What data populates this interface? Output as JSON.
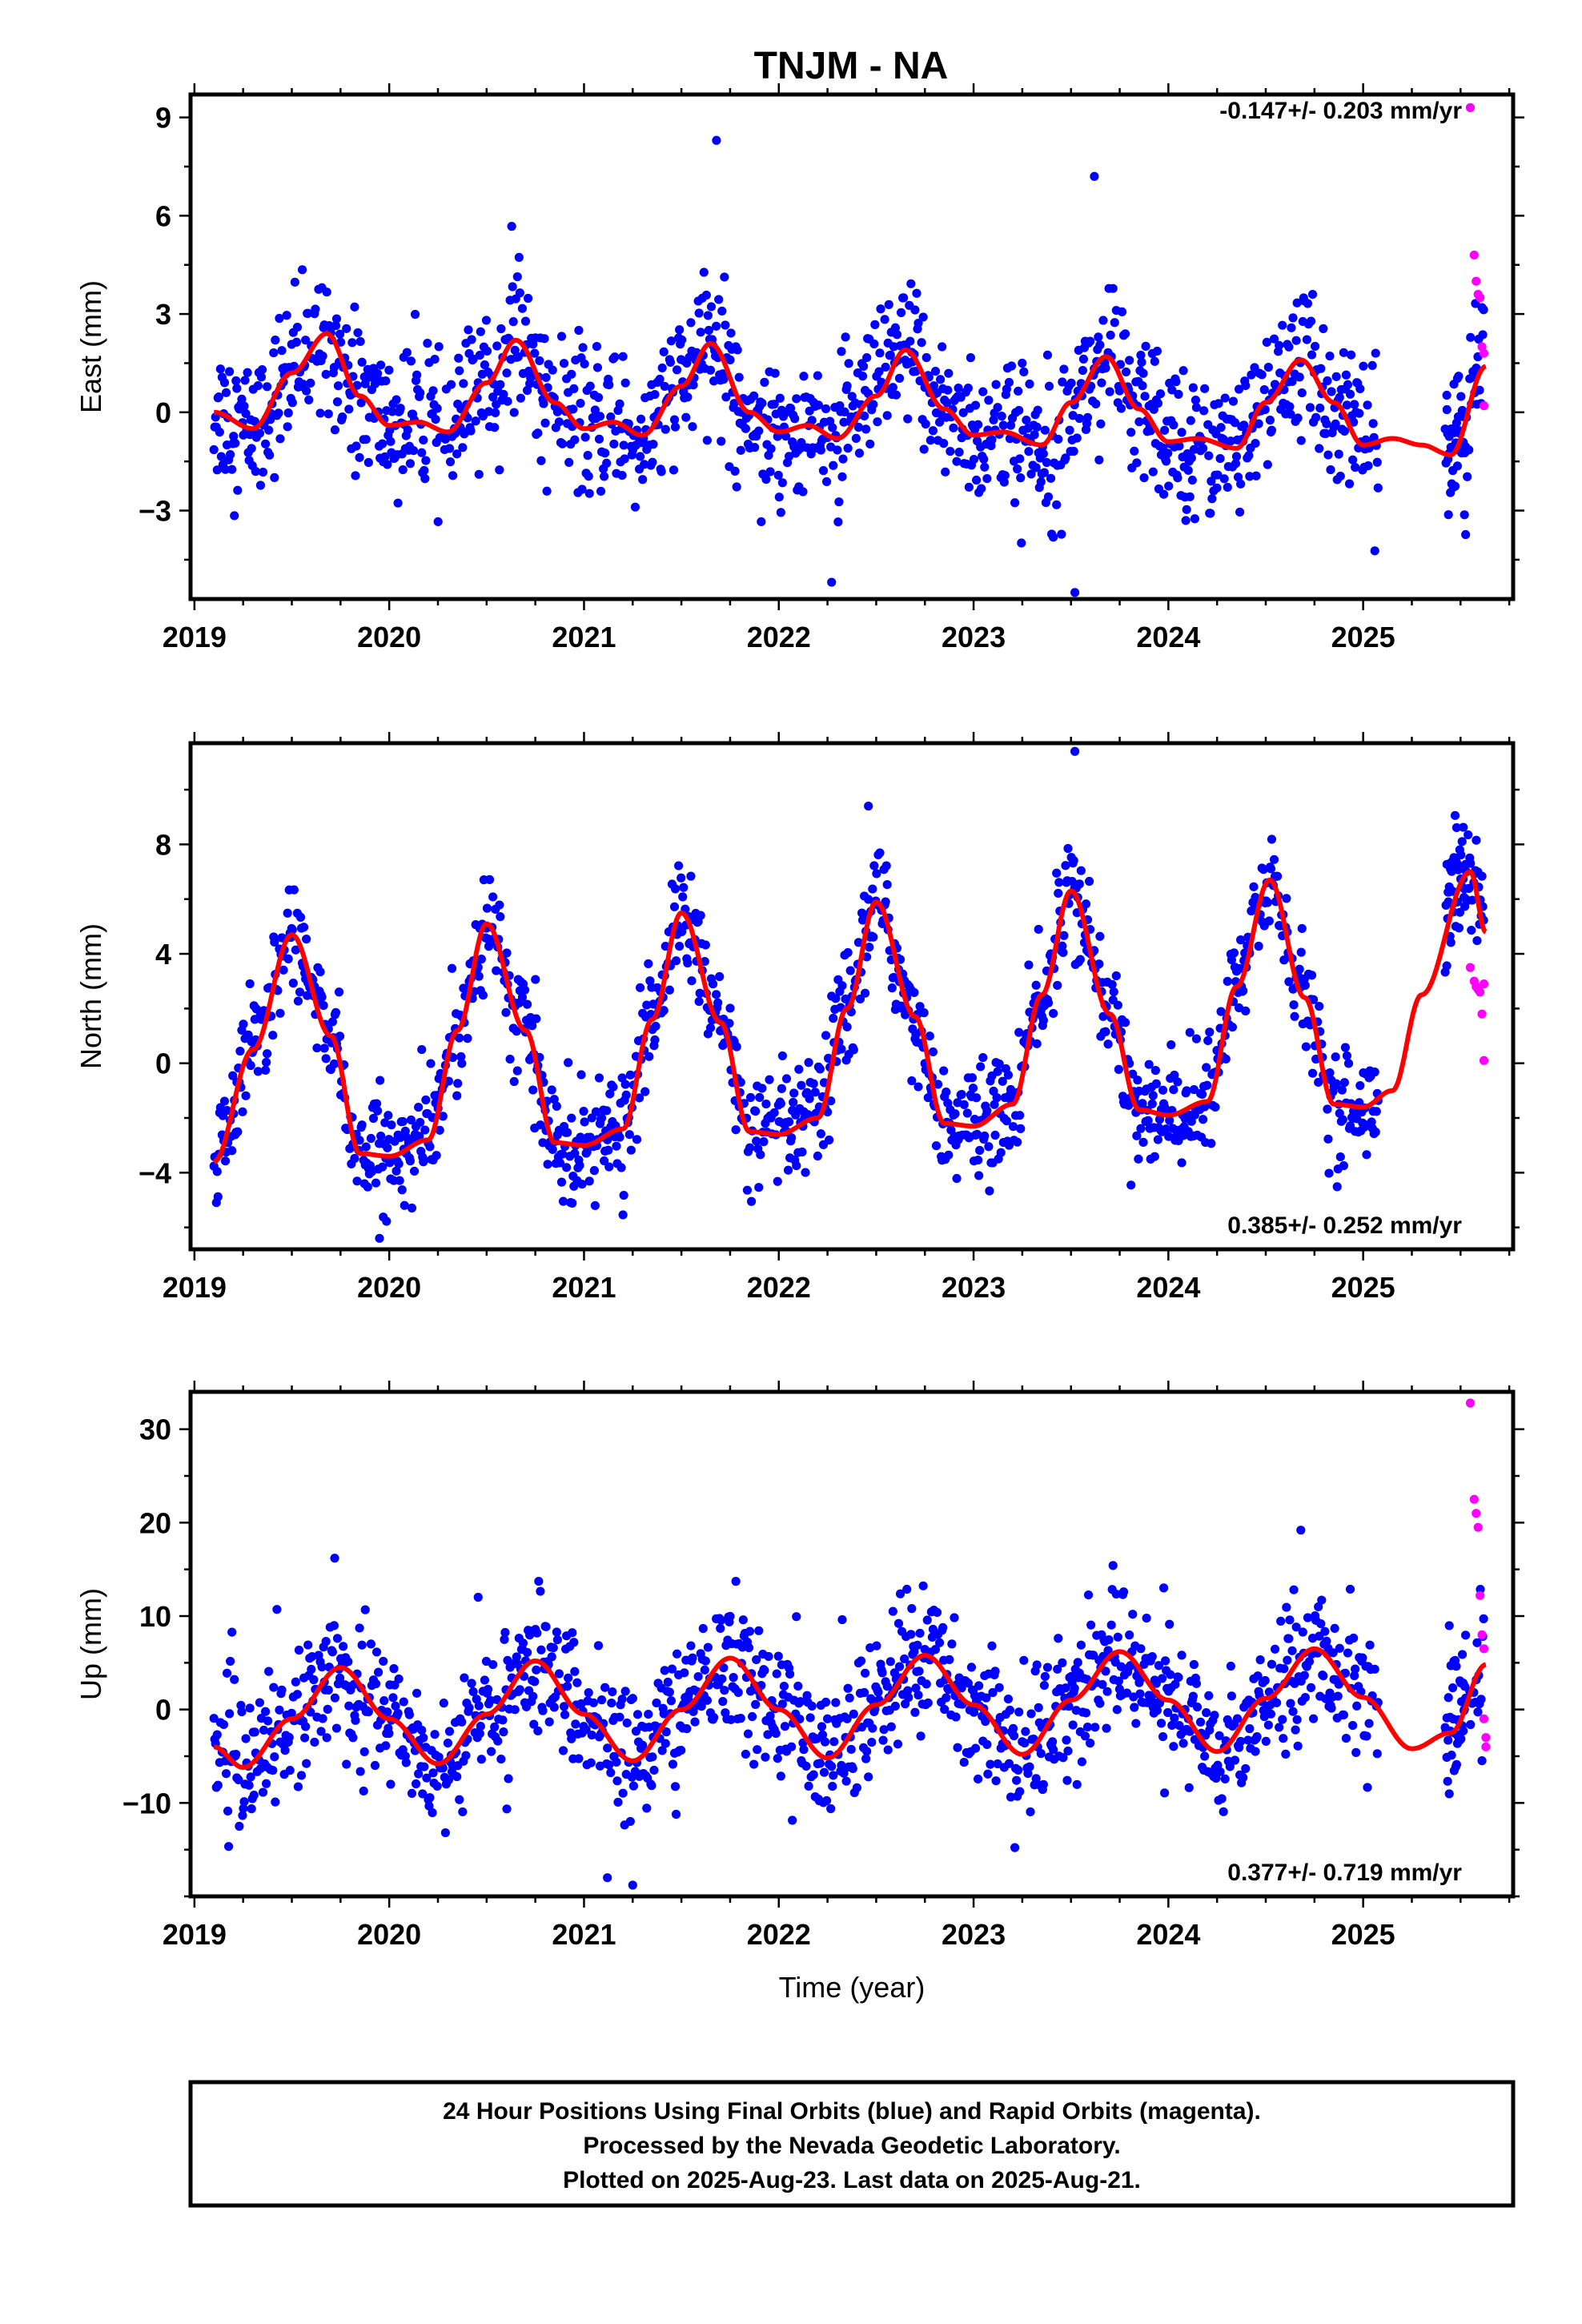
{
  "title": "TNJM - NA",
  "footer": {
    "line1": "24 Hour Positions Using Final Orbits (blue) and Rapid Orbits (magenta).",
    "line2": "Processed by the Nevada Geodetic Laboratory.",
    "line3": "Plotted on 2025-Aug-23. Last data on 2025-Aug-21."
  },
  "colors": {
    "final": "#0000ff",
    "rapid": "#ff00ff",
    "fit": "#ff0000",
    "frame": "#000000"
  },
  "chart_data": [
    {
      "type": "scatter",
      "ylabel": "East (mm)",
      "xlabel": "",
      "rate_label": "-0.147+/- 0.203 mm/yr",
      "xlim": [
        2018.98,
        2025.77
      ],
      "ylim": [
        -5.7,
        9.7
      ],
      "yticks": [
        -3,
        0,
        3,
        6,
        9
      ],
      "xticks": [
        2019,
        2020,
        2021,
        2022,
        2023,
        2024,
        2025
      ],
      "xtick_labels": [
        "2019",
        "2020",
        "2021",
        "2022",
        "2023",
        "2024",
        "2025"
      ],
      "fit": {
        "x": [
          2019.1,
          2019.3,
          2019.5,
          2019.68,
          2019.85,
          2020.0,
          2020.15,
          2020.3,
          2020.5,
          2020.65,
          2020.85,
          2021.0,
          2021.15,
          2021.3,
          2021.5,
          2021.65,
          2021.85,
          2022.0,
          2022.15,
          2022.3,
          2022.5,
          2022.65,
          2022.85,
          2023.0,
          2023.15,
          2023.35,
          2023.5,
          2023.68,
          2023.85,
          2024.0,
          2024.15,
          2024.35,
          2024.5,
          2024.68,
          2024.85,
          2025.0,
          2025.15,
          2025.3,
          2025.45,
          2025.63
        ],
        "y": [
          0.0,
          -0.5,
          1.2,
          2.4,
          0.5,
          -0.4,
          -0.3,
          -0.6,
          0.9,
          2.2,
          0.3,
          -0.5,
          -0.3,
          -0.7,
          0.8,
          2.1,
          0.0,
          -0.6,
          -0.4,
          -0.8,
          0.5,
          1.9,
          0.1,
          -0.7,
          -0.6,
          -1.0,
          0.3,
          1.7,
          0.1,
          -0.9,
          -0.8,
          -1.1,
          0.3,
          1.6,
          0.3,
          -1.0,
          -0.8,
          -1.0,
          -1.3,
          1.4
        ]
      },
      "final": {
        "amp": 1.5,
        "phase": 0.58,
        "offset": 0.3,
        "trend": -0.147,
        "noise": 1.1,
        "outliers": [
          [
            2021.68,
            8.3
          ],
          [
            2023.62,
            7.2
          ],
          [
            2023.52,
            -5.5
          ]
        ]
      },
      "rapid": {
        "x": [
          2025.55,
          2025.57,
          2025.58,
          2025.59,
          2025.6,
          2025.61,
          2025.62,
          2025.62
        ],
        "y": [
          9.3,
          4.8,
          4.0,
          3.6,
          3.5,
          2.0,
          1.8,
          0.2
        ]
      }
    },
    {
      "type": "scatter",
      "ylabel": "North (mm)",
      "xlabel": "",
      "rate_label": "0.385+/- 0.252 mm/yr",
      "xlim": [
        2018.98,
        2025.77
      ],
      "ylim": [
        -6.8,
        11.7
      ],
      "yticks": [
        -4,
        0,
        4,
        8
      ],
      "xticks": [
        2019,
        2020,
        2021,
        2022,
        2023,
        2024,
        2025
      ],
      "xtick_labels": [
        "2019",
        "2020",
        "2021",
        "2022",
        "2023",
        "2024",
        "2025"
      ],
      "fit": {
        "x": [
          2019.1,
          2019.3,
          2019.5,
          2019.7,
          2019.85,
          2020.0,
          2020.2,
          2020.35,
          2020.5,
          2020.7,
          2020.85,
          2021.0,
          2021.2,
          2021.35,
          2021.5,
          2021.7,
          2021.85,
          2022.0,
          2022.2,
          2022.35,
          2022.5,
          2022.7,
          2022.85,
          2023.0,
          2023.2,
          2023.35,
          2023.5,
          2023.7,
          2023.85,
          2024.0,
          2024.2,
          2024.35,
          2024.52,
          2024.7,
          2024.85,
          2025.0,
          2025.15,
          2025.3,
          2025.55,
          2025.63
        ],
        "y": [
          -3.6,
          0.5,
          4.7,
          1.0,
          -3.3,
          -3.4,
          -2.8,
          1.2,
          5.1,
          1.2,
          -2.9,
          -3.0,
          -2.4,
          1.6,
          5.5,
          1.5,
          -2.5,
          -2.6,
          -2.0,
          2.0,
          5.9,
          1.7,
          -2.2,
          -2.3,
          -1.5,
          2.5,
          6.3,
          1.8,
          -1.7,
          -1.9,
          -1.4,
          2.8,
          6.7,
          2.4,
          -1.5,
          -1.6,
          -1.0,
          2.5,
          7.0,
          4.8
        ]
      },
      "final": {
        "amp": 4.5,
        "phase": 0.25,
        "offset": 1.1,
        "trend": 0.385,
        "noise": 1.0,
        "outliers": [
          [
            2023.52,
            11.4
          ],
          [
            2022.46,
            9.4
          ],
          [
            2019.95,
            -6.4
          ]
        ]
      },
      "rapid": {
        "x": [
          2025.55,
          2025.57,
          2025.58,
          2025.59,
          2025.6,
          2025.61,
          2025.62,
          2025.62
        ],
        "y": [
          3.5,
          3.0,
          2.8,
          2.7,
          2.6,
          1.8,
          0.1,
          2.9
        ]
      }
    },
    {
      "type": "scatter",
      "ylabel": "Up (mm)",
      "xlabel": "Time (year)",
      "rate_label": "0.377+/- 0.719 mm/yr",
      "xlim": [
        2018.98,
        2025.77
      ],
      "ylim": [
        -20,
        34
      ],
      "yticks": [
        -10,
        0,
        10,
        20,
        30
      ],
      "xticks": [
        2019,
        2020,
        2021,
        2022,
        2023,
        2024,
        2025
      ],
      "xtick_labels": [
        "2019",
        "2020",
        "2021",
        "2022",
        "2023",
        "2024",
        "2025"
      ],
      "fit": {
        "x": [
          2019.1,
          2019.25,
          2019.5,
          2019.75,
          2020.0,
          2020.25,
          2020.5,
          2020.75,
          2021.0,
          2021.25,
          2021.5,
          2021.75,
          2022.0,
          2022.25,
          2022.5,
          2022.75,
          2023.0,
          2023.25,
          2023.5,
          2023.75,
          2024.0,
          2024.25,
          2024.5,
          2024.75,
          2025.0,
          2025.25,
          2025.45,
          2025.63
        ],
        "y": [
          -4.0,
          -6.2,
          -1.0,
          4.5,
          -1.0,
          -5.8,
          -0.5,
          5.2,
          -0.5,
          -5.5,
          0.0,
          5.5,
          0.0,
          -5.2,
          0.5,
          5.8,
          0.5,
          -4.8,
          1.0,
          6.2,
          1.0,
          -4.5,
          1.2,
          6.5,
          1.3,
          -4.2,
          -2.5,
          4.8
        ]
      },
      "final": {
        "amp": 5.5,
        "phase": 0.0,
        "offset": 0.0,
        "trend": 0.377,
        "noise": 3.6,
        "outliers": [
          [
            2024.68,
            19.2
          ],
          [
            2021.25,
            -18.8
          ],
          [
            2021.12,
            -18.0
          ],
          [
            2019.72,
            16.2
          ]
        ]
      },
      "rapid": {
        "x": [
          2025.55,
          2025.57,
          2025.58,
          2025.59,
          2025.6,
          2025.61,
          2025.62,
          2025.62,
          2025.63,
          2025.63
        ],
        "y": [
          32.8,
          22.5,
          21.0,
          19.5,
          12.2,
          8.0,
          6.5,
          -1.0,
          -3.0,
          -4.0
        ]
      }
    }
  ]
}
